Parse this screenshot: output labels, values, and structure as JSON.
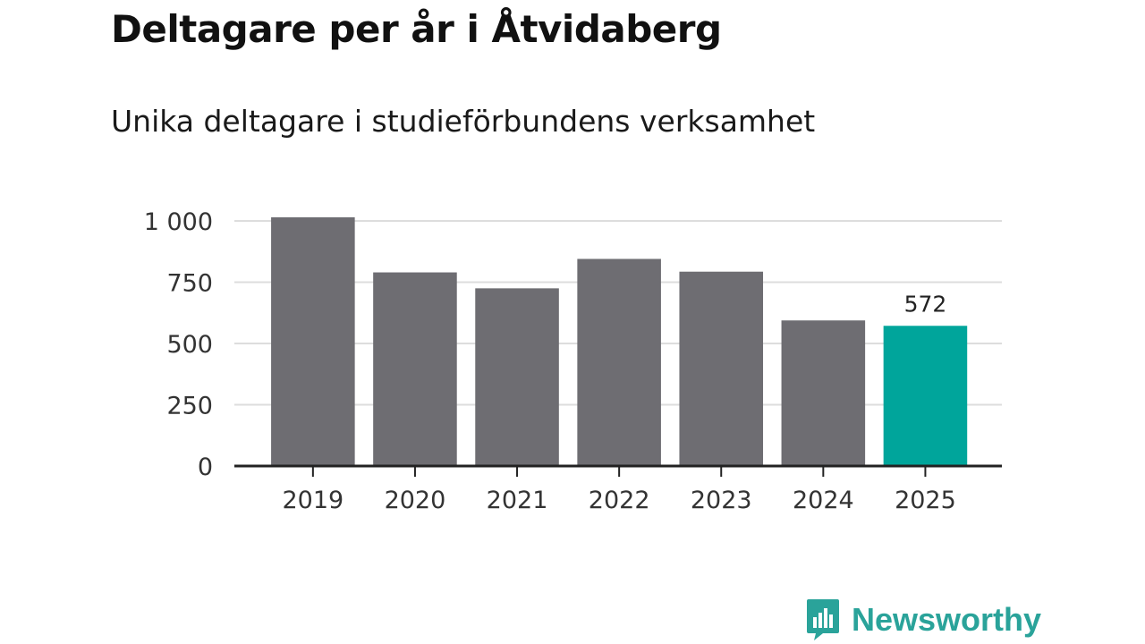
{
  "title": "Deltagare per år i Åtvidaberg",
  "subtitle": "Unika deltagare i studieförbundens verksamhet",
  "colors": {
    "bar": "#6e6d72",
    "highlight": "#00a59b",
    "grid": "#dddddd",
    "axis": "#222222",
    "text": "#333333",
    "brand": "#2aa39a"
  },
  "chart_data": {
    "type": "bar",
    "title": "Deltagare per år i Åtvidaberg",
    "subtitle": "Unika deltagare i studieförbundens verksamhet",
    "categories": [
      "2019",
      "2020",
      "2021",
      "2022",
      "2023",
      "2024",
      "2025"
    ],
    "values": [
      1015,
      790,
      725,
      845,
      793,
      594,
      572
    ],
    "highlight_index": 6,
    "data_labels": [
      {
        "index": 6,
        "text": "572"
      }
    ],
    "yticks": [
      {
        "value": 0,
        "label": "0"
      },
      {
        "value": 250,
        "label": "250"
      },
      {
        "value": 500,
        "label": "500"
      },
      {
        "value": 750,
        "label": "750"
      },
      {
        "value": 1000,
        "label": "1 000"
      }
    ],
    "ylim": [
      0,
      1000
    ],
    "xlabel": "",
    "ylabel": "",
    "grid": true
  },
  "brand": {
    "name": "Newsworthy",
    "icon": "bar-chart-speech-bubble-icon"
  }
}
